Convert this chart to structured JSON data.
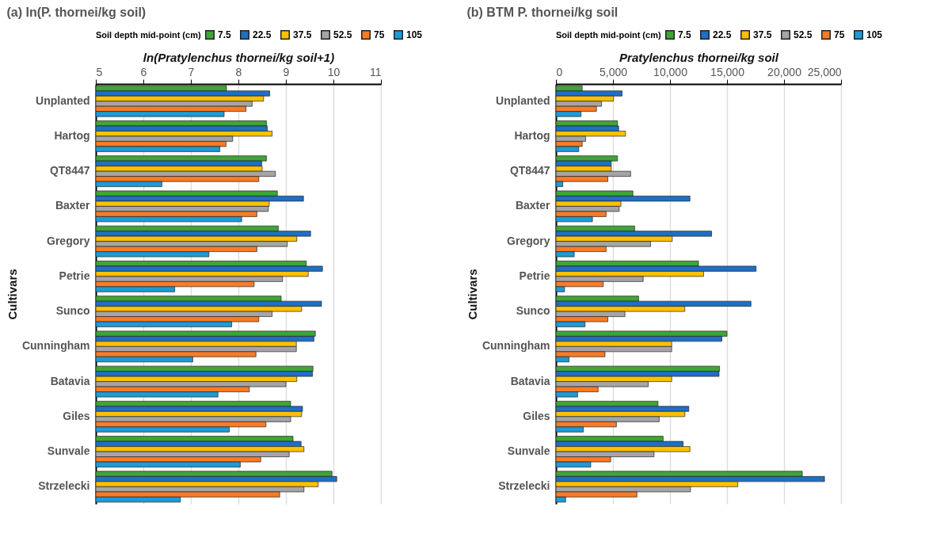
{
  "chart_data": [
    {
      "type": "bar",
      "orientation": "horizontal",
      "title": "(a)  ln(P. thornei/kg soil)",
      "xlabel": "ln(Pratylenchus thornei/kg soil+1)",
      "ylabel": "Cultivars",
      "legend_title": "Soil depth mid-point (cm)",
      "legend": "top",
      "grid": "x",
      "categories": [
        "Unplanted",
        "Hartog",
        "QT8447",
        "Baxter",
        "Gregory",
        "Petrie",
        "Sunco",
        "Cunningham",
        "Batavia",
        "Giles",
        "Sunvale",
        "Strzelecki"
      ],
      "xlim": [
        5,
        11
      ],
      "xticks": [
        5,
        6,
        7,
        8,
        9,
        10,
        11
      ],
      "series": [
        {
          "name": "7.5",
          "color": "#3fa535",
          "values": [
            7.75,
            8.59,
            8.59,
            8.82,
            8.84,
            9.43,
            8.9,
            9.62,
            9.57,
            9.1,
            9.15,
            9.97
          ]
        },
        {
          "name": "22.5",
          "color": "#1f6fc4",
          "values": [
            8.66,
            8.61,
            8.49,
            9.37,
            9.52,
            9.77,
            9.75,
            9.59,
            9.56,
            9.35,
            9.32,
            10.07
          ]
        },
        {
          "name": "37.5",
          "color": "#ffc000",
          "values": [
            8.53,
            8.71,
            8.5,
            8.65,
            9.23,
            9.47,
            9.33,
            9.22,
            9.23,
            9.33,
            9.38,
            9.68
          ]
        },
        {
          "name": "52.5",
          "color": "#a5a5a5",
          "values": [
            8.29,
            7.88,
            8.78,
            8.63,
            9.03,
            8.93,
            8.71,
            9.22,
            9.0,
            9.1,
            9.07,
            9.38
          ]
        },
        {
          "name": "75",
          "color": "#f97b25",
          "values": [
            8.16,
            7.74,
            8.43,
            8.39,
            8.39,
            8.33,
            8.43,
            8.37,
            8.23,
            8.58,
            8.47,
            8.87
          ]
        },
        {
          "name": "105",
          "color": "#1f9ad6",
          "values": [
            7.7,
            7.61,
            6.39,
            8.07,
            7.38,
            6.66,
            7.86,
            7.04,
            7.57,
            7.81,
            8.04,
            6.78
          ]
        }
      ]
    },
    {
      "type": "bar",
      "orientation": "horizontal",
      "title": "(b) BTM P. thornei/kg soil",
      "xlabel": "Pratylenchus thornei/kg soil",
      "ylabel": "Cultivars",
      "legend_title": "Soil depth mid-point (cm)",
      "legend": "top",
      "grid": "x",
      "categories": [
        "Unplanted",
        "Hartog",
        "QT8447",
        "Baxter",
        "Gregory",
        "Petrie",
        "Sunco",
        "Cunningham",
        "Batavia",
        "Giles",
        "Sunvale",
        "Strzelecki"
      ],
      "xlim": [
        0,
        25000
      ],
      "xticks": [
        0,
        {
          "value": 5000,
          "label": "5,000"
        },
        {
          "value": 10000,
          "label": "10,000"
        },
        {
          "value": 15000,
          "label": "15,000"
        },
        {
          "value": 20000,
          "label": "20,000"
        },
        {
          "value": 25000,
          "label": "25,000"
        }
      ],
      "series": [
        {
          "name": "7.5",
          "color": "#3fa535",
          "values": [
            2300,
            5400,
            5400,
            6750,
            6900,
            12500,
            7250,
            15000,
            14350,
            8950,
            9400,
            21600
          ]
        },
        {
          "name": "22.5",
          "color": "#1f6fc4",
          "values": [
            5800,
            5500,
            4850,
            11750,
            13650,
            17550,
            17100,
            14550,
            14300,
            11650,
            11150,
            23550
          ]
        },
        {
          "name": "37.5",
          "color": "#ffc000",
          "values": [
            5050,
            6100,
            4850,
            5700,
            10200,
            12950,
            11300,
            10150,
            10150,
            11300,
            11750,
            15950
          ]
        },
        {
          "name": "52.5",
          "color": "#a5a5a5",
          "values": [
            4000,
            2600,
            6550,
            5550,
            8300,
            7650,
            6050,
            10150,
            8100,
            9050,
            8600,
            11800
          ]
        },
        {
          "name": "75",
          "color": "#f97b25",
          "values": [
            3550,
            2300,
            4550,
            4400,
            4400,
            4150,
            4550,
            4300,
            3700,
            5300,
            4800,
            7100
          ]
        },
        {
          "name": "105",
          "color": "#1f9ad6",
          "values": [
            2200,
            2000,
            600,
            3200,
            1600,
            750,
            2550,
            1150,
            1900,
            2400,
            3050,
            850
          ]
        }
      ]
    }
  ]
}
